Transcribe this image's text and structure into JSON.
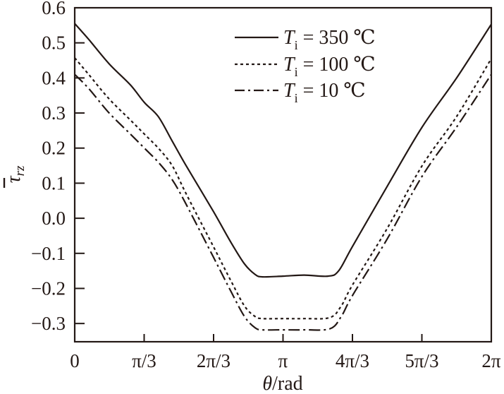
{
  "chart_data": {
    "type": "line",
    "title": "",
    "xlabel": "θ/rad",
    "ylabel": "τ̄_rz",
    "xlim": [
      0,
      6.2832
    ],
    "ylim": [
      -0.352,
      0.6
    ],
    "x_ticks": [
      {
        "value": 0,
        "label": "0"
      },
      {
        "value": 1.0472,
        "label": "π/3"
      },
      {
        "value": 2.0944,
        "label": "2π/3"
      },
      {
        "value": 3.1416,
        "label": "π"
      },
      {
        "value": 4.1888,
        "label": "4π/3"
      },
      {
        "value": 5.236,
        "label": "5π/3"
      },
      {
        "value": 6.2832,
        "label": "2π"
      }
    ],
    "y_ticks": [
      {
        "value": 0.6,
        "label": "0.6"
      },
      {
        "value": 0.5,
        "label": "0.5"
      },
      {
        "value": 0.4,
        "label": "0.4"
      },
      {
        "value": 0.3,
        "label": "0.3"
      },
      {
        "value": 0.2,
        "label": "0.2"
      },
      {
        "value": 0.1,
        "label": "0.1"
      },
      {
        "value": 0.0,
        "label": "0.0"
      },
      {
        "value": -0.1,
        "label": "−0.1"
      },
      {
        "value": -0.2,
        "label": "−0.2"
      },
      {
        "value": -0.3,
        "label": "−0.3"
      }
    ],
    "grid": false,
    "legend_position": "upper center",
    "series": [
      {
        "name": "Ti = 350 ℃",
        "legend_main": "T",
        "legend_sub": "i",
        "legend_rest": " = 350 ℃",
        "style": "solid",
        "x": [
          0,
          0.21,
          0.52,
          0.84,
          1.05,
          1.26,
          1.47,
          1.68,
          2.09,
          2.36,
          2.56,
          2.72,
          2.83,
          3.14,
          3.46,
          3.82,
          3.98,
          4.19,
          4.71,
          5.24,
          5.76,
          6.2832
        ],
        "y": [
          0.555,
          0.51,
          0.44,
          0.38,
          0.33,
          0.29,
          0.22,
          0.15,
          0.02,
          -0.07,
          -0.13,
          -0.16,
          -0.167,
          -0.165,
          -0.162,
          -0.165,
          -0.15,
          -0.08,
          0.09,
          0.26,
          0.4,
          0.553
        ]
      },
      {
        "name": "Ti = 100 ℃",
        "legend_main": "T",
        "legend_sub": "i",
        "legend_rest": " = 100 ℃",
        "style": "dotted",
        "x": [
          0,
          0.21,
          0.52,
          0.84,
          1.05,
          1.26,
          1.47,
          1.68,
          2.09,
          2.36,
          2.56,
          2.72,
          2.83,
          3.14,
          3.46,
          3.85,
          4.02,
          4.19,
          4.71,
          5.24,
          5.76,
          6.2832
        ],
        "y": [
          0.457,
          0.41,
          0.34,
          0.28,
          0.24,
          0.2,
          0.15,
          0.07,
          -0.08,
          -0.18,
          -0.25,
          -0.28,
          -0.286,
          -0.286,
          -0.286,
          -0.283,
          -0.25,
          -0.19,
          -0.03,
          0.15,
          0.29,
          0.455
        ]
      },
      {
        "name": "Ti = 10 ℃",
        "legend_main": "T",
        "legend_sub": "i",
        "legend_rest": " = 10 ℃",
        "style": "dashdot",
        "x": [
          0,
          0.21,
          0.52,
          0.84,
          1.05,
          1.26,
          1.47,
          1.68,
          2.09,
          2.36,
          2.56,
          2.72,
          2.83,
          3.14,
          3.46,
          3.85,
          4.02,
          4.19,
          4.71,
          5.24,
          5.76,
          6.2832
        ],
        "y": [
          0.41,
          0.37,
          0.3,
          0.24,
          0.2,
          0.16,
          0.11,
          0.04,
          -0.11,
          -0.21,
          -0.28,
          -0.312,
          -0.318,
          -0.318,
          -0.318,
          -0.315,
          -0.28,
          -0.22,
          -0.06,
          0.12,
          0.26,
          0.41
        ]
      }
    ]
  },
  "colors": {
    "ink": "#231815",
    "background": "#ffffff"
  }
}
